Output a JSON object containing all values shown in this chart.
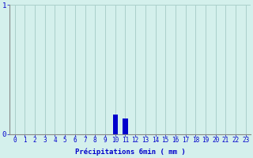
{
  "hours": [
    0,
    1,
    2,
    3,
    4,
    5,
    6,
    7,
    8,
    9,
    10,
    11,
    12,
    13,
    14,
    15,
    16,
    17,
    18,
    19,
    20,
    21,
    22,
    23
  ],
  "values": [
    0,
    0,
    0,
    0,
    0,
    0,
    0,
    0,
    0,
    0,
    0.15,
    0.12,
    0,
    0,
    0,
    0,
    0,
    0,
    0,
    0,
    0,
    0,
    0,
    0
  ],
  "bar_color": "#0000cc",
  "background_color": "#d4f0ec",
  "grid_color": "#aacfca",
  "axis_color": "#888888",
  "text_color": "#0000cc",
  "xlabel": "Précipitations 6min ( mm )",
  "ylim": [
    0,
    1
  ],
  "xlim": [
    -0.5,
    23.5
  ],
  "yticks": [
    0,
    1
  ],
  "xticks": [
    0,
    1,
    2,
    3,
    4,
    5,
    6,
    7,
    8,
    9,
    10,
    11,
    12,
    13,
    14,
    15,
    16,
    17,
    18,
    19,
    20,
    21,
    22,
    23
  ],
  "xlabel_fontsize": 6.5,
  "tick_fontsize": 5.5,
  "ytick_fontsize": 6.5,
  "bar_width": 0.5
}
